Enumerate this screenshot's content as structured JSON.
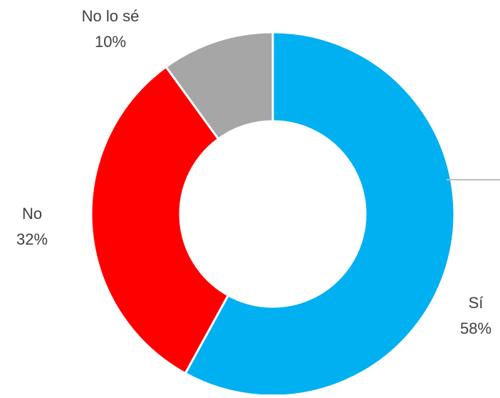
{
  "chart_data": {
    "type": "pie",
    "variant": "donut",
    "slices": [
      {
        "label": "Sí",
        "value": 58,
        "value_label": "58%",
        "color": "#00B0F0"
      },
      {
        "label": "No",
        "value": 32,
        "value_label": "32%",
        "color": "#FF0000"
      },
      {
        "label": "No lo sé",
        "value": 10,
        "value_label": "10%",
        "color": "#A6A6A6"
      }
    ],
    "legend": "none",
    "leader_line_color": "#BFBFBF"
  }
}
